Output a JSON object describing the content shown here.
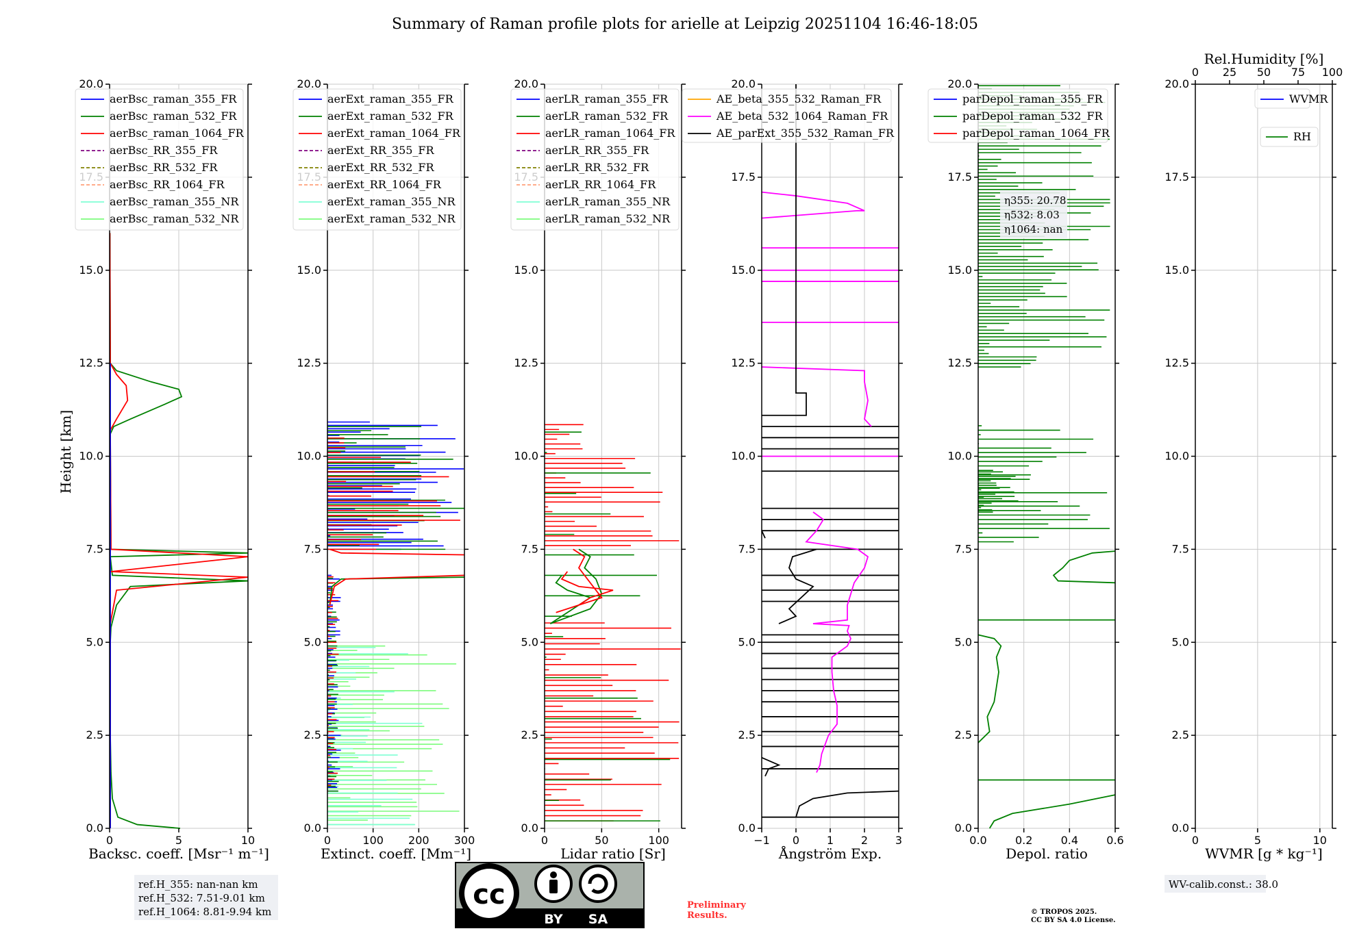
{
  "title": "Summary of Raman profile plots for arielle at Leipzig 20251104 16:46-18:05",
  "ylabel": "Height [km]",
  "yticks": [
    "0.0",
    "2.5",
    "5.0",
    "7.5",
    "10.0",
    "12.5",
    "15.0",
    "17.5",
    "20.0"
  ],
  "colors": {
    "blue": "#0000ff",
    "green": "#008000",
    "red": "#ff0000",
    "purple": "#800080",
    "olive": "#808000",
    "salmon": "#ffa07a",
    "cyan": "#7fffd4",
    "lightgreen": "#7cfc7c",
    "magenta": "#ff00ff",
    "orange": "#ffa500",
    "black": "#000000"
  },
  "chart_data": [
    {
      "type": "line",
      "xlabel": "Backsc. coeff. [Msr⁻¹ m⁻¹]",
      "xlim": [
        0,
        10
      ],
      "ylim": [
        0,
        20
      ],
      "xticks": [
        "0",
        "5",
        "10"
      ],
      "legend": [
        "aerBsc_raman_355_FR",
        "aerBsc_raman_532_FR",
        "aerBsc_raman_1064_FR",
        "aerBsc_RR_355_FR",
        "aerBsc_RR_532_FR",
        "aerBsc_RR_1064_FR",
        "aerBsc_raman_355_NR",
        "aerBsc_raman_532_NR"
      ],
      "series": [
        {
          "name": "aerBsc_raman_532_FR",
          "color": "green",
          "points": [
            [
              5.1,
              0.0
            ],
            [
              2.0,
              0.1
            ],
            [
              0.6,
              0.3
            ],
            [
              0.2,
              0.8
            ],
            [
              0.1,
              1.5
            ],
            [
              0.05,
              2.5
            ],
            [
              0.05,
              5.0
            ],
            [
              0.1,
              5.4
            ],
            [
              0.5,
              6.0
            ],
            [
              1.5,
              6.5
            ],
            [
              10,
              6.65
            ],
            [
              0.2,
              6.8
            ],
            [
              0.05,
              7.3
            ],
            [
              10,
              7.4
            ],
            [
              0.1,
              7.5
            ],
            [
              0.05,
              10.6
            ],
            [
              0.3,
              10.8
            ],
            [
              1.5,
              11.0
            ],
            [
              4.0,
              11.4
            ],
            [
              5.2,
              11.6
            ],
            [
              5.0,
              11.8
            ],
            [
              3.0,
              12.0
            ],
            [
              0.5,
              12.3
            ],
            [
              0.05,
              12.5
            ],
            [
              0.02,
              16.0
            ]
          ]
        },
        {
          "name": "aerBsc_raman_1064_FR",
          "color": "red",
          "points": [
            [
              0.05,
              0.0
            ],
            [
              0.05,
              5.5
            ],
            [
              0.3,
              6.0
            ],
            [
              0.5,
              6.4
            ],
            [
              10,
              6.75
            ],
            [
              0.1,
              6.9
            ],
            [
              10,
              7.3
            ],
            [
              0.1,
              7.5
            ],
            [
              0.05,
              10.7
            ],
            [
              0.5,
              11.0
            ],
            [
              1.3,
              11.5
            ],
            [
              1.2,
              11.9
            ],
            [
              0.5,
              12.2
            ],
            [
              0.05,
              12.5
            ],
            [
              0.02,
              16.0
            ]
          ]
        },
        {
          "name": "aerBsc_raman_355_FR",
          "color": "blue",
          "points": [
            [
              0.05,
              0.0
            ],
            [
              0.05,
              12.5
            ]
          ]
        }
      ]
    },
    {
      "type": "line",
      "xlabel": "Extinct. coeff. [Mm⁻¹]",
      "xlim": [
        0,
        300
      ],
      "ylim": [
        0,
        20
      ],
      "xticks": [
        "0",
        "100",
        "200",
        "300"
      ],
      "legend": [
        "aerExt_raman_355_FR",
        "aerExt_raman_532_FR",
        "aerExt_raman_1064_FR",
        "aerExt_RR_355_FR",
        "aerExt_RR_532_FR",
        "aerExt_RR_1064_FR",
        "aerExt_raman_355_NR",
        "aerExt_raman_532_NR"
      ],
      "noise": [
        {
          "color": "lightgreen",
          "y0": 0.1,
          "y1": 5.0,
          "step": 0.12,
          "max": 290
        },
        {
          "color": "cyan",
          "y0": 0.1,
          "y1": 5.0,
          "step": 0.17,
          "max": 220
        },
        {
          "color": "blue",
          "y0": 7.5,
          "y1": 11.0,
          "step": 0.09,
          "max": 300
        },
        {
          "color": "green",
          "y0": 7.5,
          "y1": 10.9,
          "step": 0.11,
          "max": 300
        },
        {
          "color": "red",
          "y0": 7.5,
          "y1": 10.6,
          "step": 0.13,
          "max": 300
        },
        {
          "color": "blue",
          "y0": 1.0,
          "y1": 6.8,
          "step": 0.1,
          "max": 30
        },
        {
          "color": "green",
          "y0": 1.0,
          "y1": 6.8,
          "step": 0.13,
          "max": 25
        },
        {
          "color": "red",
          "y0": 1.0,
          "y1": 6.8,
          "step": 0.16,
          "max": 25
        }
      ],
      "series": [
        {
          "name": "aerExt_raman_532_FR",
          "color": "green",
          "points": [
            [
              300,
              6.75
            ],
            [
              30,
              6.7
            ],
            [
              10,
              6.5
            ],
            [
              5,
              6.0
            ]
          ]
        },
        {
          "name": "aerExt_raman_1064_FR",
          "color": "red",
          "points": [
            [
              300,
              6.8
            ],
            [
              40,
              6.7
            ],
            [
              15,
              6.5
            ],
            [
              5,
              6.0
            ]
          ]
        },
        {
          "name": "aerExt_raman_1064_FR_b",
          "color": "red",
          "points": [
            [
              300,
              7.35
            ],
            [
              30,
              7.4
            ],
            [
              5,
              7.5
            ]
          ]
        }
      ]
    },
    {
      "type": "line",
      "xlabel": "Lidar ratio [Sr]",
      "xlim": [
        0,
        120
      ],
      "ylim": [
        0,
        20
      ],
      "xticks": [
        "0",
        "50",
        "100"
      ],
      "legend": [
        "aerLR_raman_355_FR",
        "aerLR_raman_532_FR",
        "aerLR_raman_1064_FR",
        "aerLR_RR_355_FR",
        "aerLR_RR_532_FR",
        "aerLR_RR_1064_FR",
        "aerLR_raman_355_NR",
        "aerLR_raman_532_NR"
      ],
      "noise": [
        {
          "color": "red",
          "y0": 0.2,
          "y1": 5.6,
          "step": 0.14,
          "max": 120
        },
        {
          "color": "red",
          "y0": 7.6,
          "y1": 10.9,
          "step": 0.13,
          "max": 120
        },
        {
          "color": "green",
          "y0": 0.2,
          "y1": 10.8,
          "step": 0.55,
          "max": 120
        }
      ],
      "series": [
        {
          "name": "aerLR_raman_532_FR",
          "color": "green",
          "points": [
            [
              15,
              6.8
            ],
            [
              10,
              6.6
            ],
            [
              20,
              6.4
            ],
            [
              40,
              6.2
            ],
            [
              30,
              6.0
            ],
            [
              20,
              5.8
            ],
            [
              10,
              5.6
            ],
            [
              5,
              5.5
            ],
            [
              40,
              5.9
            ],
            [
              50,
              6.3
            ],
            [
              45,
              6.7
            ],
            [
              35,
              7.0
            ],
            [
              40,
              7.3
            ],
            [
              30,
              7.5
            ]
          ]
        },
        {
          "name": "aerLR_raman_1064_FR",
          "color": "red",
          "points": [
            [
              20,
              6.9
            ],
            [
              15,
              6.7
            ],
            [
              30,
              6.5
            ],
            [
              60,
              6.4
            ],
            [
              40,
              6.2
            ],
            [
              30,
              6.0
            ],
            [
              10,
              5.8
            ],
            [
              50,
              6.2
            ],
            [
              40,
              6.6
            ],
            [
              30,
              7.0
            ],
            [
              35,
              7.3
            ],
            [
              25,
              7.5
            ]
          ]
        }
      ]
    },
    {
      "type": "line",
      "xlabel": "Ångström Exp.",
      "xlim": [
        -1,
        3
      ],
      "ylim": [
        0,
        20
      ],
      "xticks": [
        "−1",
        "0",
        "1",
        "2",
        "3"
      ],
      "legend": [
        "AE_beta_355_532_Raman_FR",
        "AE_beta_532_1064_Raman_FR",
        "AE_parExt_355_532_Raman_FR"
      ],
      "series": [
        {
          "name": "AE_beta_532_1064_Raman_FR",
          "color": "magenta",
          "points": [
            [
              0.6,
              1.5
            ],
            [
              0.7,
              1.7
            ],
            [
              0.75,
              2.0
            ],
            [
              0.95,
              2.5
            ],
            [
              1.2,
              2.8
            ],
            [
              1.2,
              3.3
            ],
            [
              1.1,
              3.7
            ],
            [
              1.05,
              4.2
            ],
            [
              1.05,
              4.6
            ],
            [
              1.5,
              4.9
            ],
            [
              1.6,
              5.1
            ],
            [
              1.5,
              5.3
            ],
            [
              1.55,
              5.45
            ],
            [
              0.5,
              5.5
            ],
            [
              1.5,
              5.6
            ],
            [
              1.5,
              6.0
            ],
            [
              1.6,
              6.3
            ],
            [
              1.7,
              6.6
            ],
            [
              2.0,
              7.0
            ],
            [
              2.1,
              7.3
            ],
            [
              1.8,
              7.5
            ],
            [
              0.3,
              7.7
            ],
            [
              0.6,
              8.0
            ],
            [
              0.8,
              8.3
            ],
            [
              0.5,
              8.5
            ]
          ]
        },
        {
          "name": "AE_beta_532_1064_Raman_FR_b",
          "color": "magenta",
          "points": [
            [
              2.2,
              10.8
            ],
            [
              2.0,
              11.0
            ],
            [
              2.1,
              11.5
            ],
            [
              2.0,
              12.0
            ],
            [
              2.0,
              12.3
            ],
            [
              -1.0,
              12.4
            ]
          ]
        },
        {
          "name": "AE_beta_532_1064_Raman_FR_c",
          "color": "magenta",
          "points": [
            [
              -1,
              16.4
            ],
            [
              1.8,
              16.6
            ],
            [
              2.0,
              16.6
            ],
            [
              1.5,
              16.8
            ],
            [
              0.0,
              17.0
            ],
            [
              -1,
              17.1
            ]
          ]
        },
        {
          "name": "AE_parExt_355_532_Raman_FR",
          "color": "black",
          "points": [
            [
              0.0,
              20.0
            ],
            [
              0.0,
              11.7
            ],
            [
              0.3,
              11.7
            ],
            [
              0.3,
              11.1
            ],
            [
              -1.0,
              11.1
            ]
          ]
        },
        {
          "name": "AE_parExt_355_532_Raman_FR_b",
          "color": "black",
          "points": [
            [
              -0.9,
              1.4
            ],
            [
              -0.8,
              1.6
            ],
            [
              -0.5,
              1.7
            ],
            [
              -1.0,
              1.9
            ]
          ]
        },
        {
          "name": "AE_parExt_355_532_Raman_FR_c",
          "color": "black",
          "points": [
            [
              -0.5,
              5.5
            ],
            [
              0.0,
              5.7
            ],
            [
              -0.2,
              5.9
            ],
            [
              0.5,
              6.5
            ],
            [
              0.0,
              6.7
            ],
            [
              -0.2,
              7.0
            ],
            [
              -0.1,
              7.3
            ],
            [
              0.6,
              7.5
            ]
          ]
        },
        {
          "name": "AE_parExt_355_532_Raman_FR_d",
          "color": "black",
          "points": [
            [
              -0.9,
              7.8
            ],
            [
              -1.0,
              8.0
            ]
          ]
        },
        {
          "name": "AE_parExt_355_532_Raman_FR_e",
          "color": "black",
          "points": [
            [
              0.0,
              0.3
            ],
            [
              0.1,
              0.6
            ],
            [
              0.5,
              0.8
            ],
            [
              1.5,
              0.95
            ],
            [
              3.0,
              1.0
            ]
          ]
        }
      ],
      "hlines": [
        {
          "color": "black",
          "y": [
            0.3,
            1.6,
            2.2,
            2.6,
            3.0,
            3.4,
            3.7,
            4.0,
            4.3,
            4.7,
            5.0,
            5.2,
            6.1,
            6.4,
            6.8,
            7.5,
            8.0,
            8.3,
            8.6,
            9.6,
            10.2,
            10.5,
            10.8
          ],
          "x0": -1,
          "x1": 3
        },
        {
          "color": "magenta",
          "y": [
            10.0,
            13.6,
            14.7,
            15.0,
            15.6
          ],
          "x0": -1,
          "x1": 3
        }
      ]
    },
    {
      "type": "line",
      "xlabel": "Depol. ratio",
      "xlim": [
        0,
        0.6
      ],
      "ylim": [
        0,
        20
      ],
      "xticks": [
        "0.0",
        "0.2",
        "0.4",
        "0.6"
      ],
      "legend": [
        "parDepol_raman_355_FR",
        "parDepol_raman_532_FR",
        "parDepol_raman_1064_FR"
      ],
      "annotation": [
        "η355: 20.78",
        "η532: 8.03",
        "η1064: nan"
      ],
      "noise": [
        {
          "color": "green",
          "y0": 12.4,
          "y1": 20.0,
          "step": 0.09,
          "max": 0.6
        },
        {
          "color": "green",
          "y0": 7.7,
          "y1": 10.9,
          "step": 0.12,
          "max": 0.6
        },
        {
          "color": "green",
          "y0": 8.5,
          "y1": 9.6,
          "step": 0.06,
          "max": 0.18
        }
      ],
      "series": [
        {
          "name": "parDepol_raman_532_FR",
          "color": "green",
          "points": [
            [
              0.0,
              2.3
            ],
            [
              0.05,
              2.6
            ],
            [
              0.04,
              3.0
            ],
            [
              0.07,
              3.4
            ],
            [
              0.08,
              3.8
            ],
            [
              0.09,
              4.2
            ],
            [
              0.08,
              4.6
            ],
            [
              0.1,
              4.9
            ],
            [
              0.07,
              5.1
            ],
            [
              0.0,
              5.2
            ]
          ]
        },
        {
          "name": "parDepol_raman_532_FR_b",
          "color": "green",
          "points": [
            [
              0.6,
              6.6
            ],
            [
              0.35,
              6.65
            ],
            [
              0.33,
              6.8
            ],
            [
              0.37,
              7.0
            ],
            [
              0.4,
              7.2
            ],
            [
              0.5,
              7.4
            ],
            [
              0.6,
              7.45
            ]
          ]
        },
        {
          "name": "parDepol_raman_532_FR_c",
          "color": "green",
          "points": [
            [
              0.05,
              0.0
            ],
            [
              0.07,
              0.2
            ],
            [
              0.15,
              0.4
            ],
            [
              0.4,
              0.65
            ],
            [
              0.6,
              0.9
            ]
          ]
        }
      ],
      "hlines": [
        {
          "color": "green",
          "y": [
            1.3,
            5.6
          ],
          "x0": 0,
          "x1": 0.6
        }
      ]
    },
    {
      "type": "line",
      "xlabel": "WVMR [g * kg⁻¹]",
      "xlim": [
        0,
        11
      ],
      "ylim": [
        0,
        20
      ],
      "xticks": [
        "0",
        "5",
        "10"
      ],
      "top_axis_label": "Rel.Humidity [%]",
      "top_xticks": [
        "0",
        "25",
        "50",
        "75",
        "100"
      ],
      "legend": [
        "WVMR"
      ],
      "legend2": [
        "RH"
      ],
      "series": []
    }
  ],
  "footer": {
    "refheights": [
      "ref.H_355: nan-nan km",
      "ref.H_532: 7.51-9.01 km",
      "ref.H_1064: 8.81-9.94 km"
    ],
    "cc_by": "BY",
    "cc_sa": "SA",
    "preliminary": [
      "Preliminary",
      "Results."
    ],
    "copyright": [
      "© TROPOS 2025.",
      "CC BY SA 4.0 License."
    ],
    "wv_calib": "WV-calib.const.: 38.0"
  }
}
